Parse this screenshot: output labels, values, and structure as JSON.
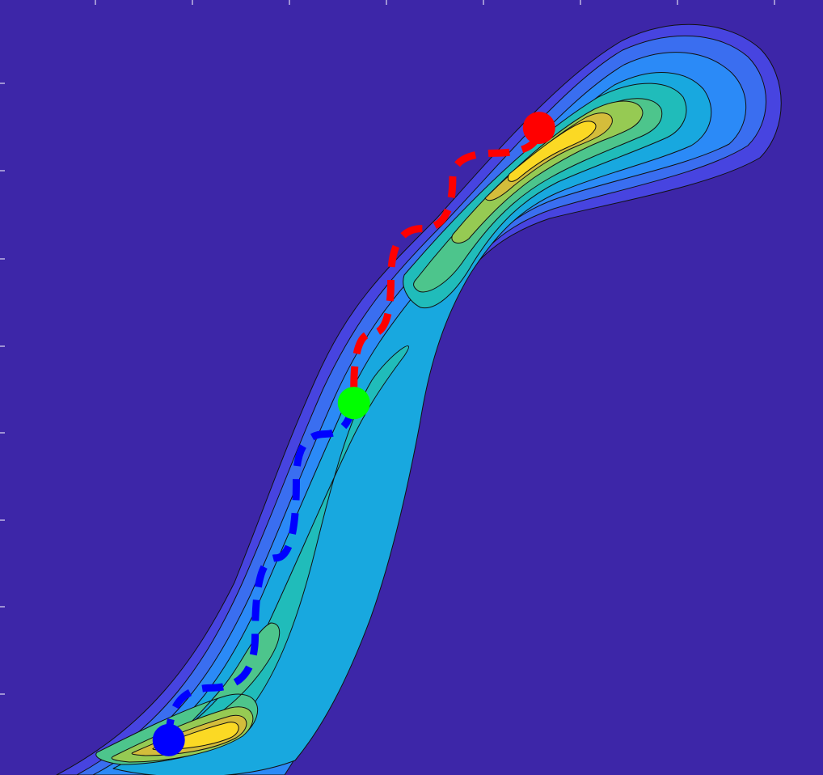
{
  "chart_data": {
    "type": "contour",
    "title": "",
    "xlabel": "",
    "ylabel": "",
    "grid": false,
    "legend": "none",
    "colormap": [
      "#3d26a8",
      "#4744e0",
      "#3a6ef0",
      "#2b8af7",
      "#18a8df",
      "#20bcba",
      "#4dc58c",
      "#96ca53",
      "#d4bd3b",
      "#fbd924"
    ],
    "density_levels": [
      1,
      2,
      3,
      4,
      5,
      6,
      7,
      8,
      9
    ],
    "density_peaks": [
      {
        "name": "lower-peak",
        "x": 0.22,
        "y": 0.06,
        "level": 9
      },
      {
        "name": "upper-peak",
        "x": 0.66,
        "y": 0.87,
        "level": 8
      }
    ],
    "paths": [
      {
        "name": "blue-path",
        "color": "#0000ff",
        "style": "dashed",
        "points": [
          [
            0.205,
            0.045
          ],
          [
            0.31,
            0.18
          ],
          [
            0.36,
            0.38
          ],
          [
            0.43,
            0.5
          ]
        ]
      },
      {
        "name": "red-path",
        "color": "#ff0000",
        "style": "dashed",
        "points": [
          [
            0.43,
            0.5
          ],
          [
            0.475,
            0.64
          ],
          [
            0.55,
            0.77
          ],
          [
            0.655,
            0.835
          ]
        ]
      }
    ],
    "markers": [
      {
        "name": "start-marker",
        "color": "#0000ff",
        "x": 0.205,
        "y": 0.045
      },
      {
        "name": "midpoint-marker",
        "color": "#00ff00",
        "x": 0.43,
        "y": 0.48
      },
      {
        "name": "end-marker",
        "color": "#ff0000",
        "x": 0.655,
        "y": 0.835
      }
    ]
  }
}
